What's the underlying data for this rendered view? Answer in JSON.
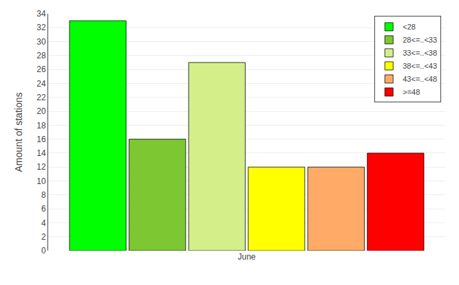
{
  "chart_data": {
    "type": "bar",
    "categories": [
      "June"
    ],
    "series": [
      {
        "name": "<28",
        "color": "#00ff00",
        "values": [
          33
        ]
      },
      {
        "name": "28<=..<33",
        "color": "#7dc832",
        "values": [
          16
        ]
      },
      {
        "name": "33<=..<38",
        "color": "#d4ef8a",
        "values": [
          27
        ]
      },
      {
        "name": "38<=..<43",
        "color": "#ffff00",
        "values": [
          12
        ]
      },
      {
        "name": "43<=..<48",
        "color": "#ffaa66",
        "values": [
          12
        ]
      },
      {
        "name": ">=48",
        "color": "#ff0000",
        "values": [
          14
        ]
      }
    ],
    "ylabel": "Amount of stations",
    "ylim": [
      0,
      34
    ],
    "yticks": [
      0,
      2,
      4,
      6,
      8,
      10,
      12,
      14,
      16,
      18,
      20,
      22,
      24,
      26,
      28,
      30,
      32,
      34
    ],
    "grid": true,
    "legend": "upper right"
  }
}
